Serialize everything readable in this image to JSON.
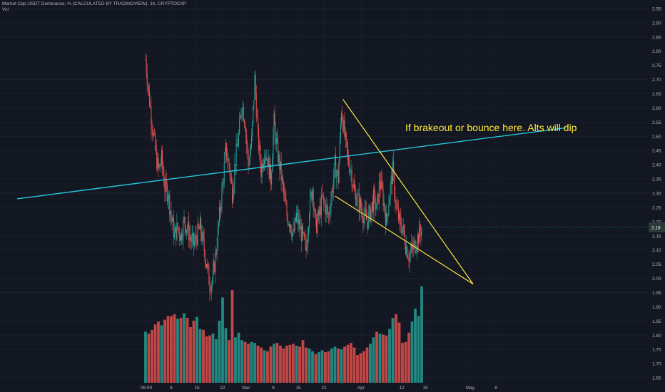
{
  "header": {
    "title": "Market Cap USDT Dominance, % (CALCULATED BY TRADINGVIEW), 1h, CRYPTOCAP",
    "volume_label": "Vol"
  },
  "annotation": "If brakeout or bounce here. Alts will dip",
  "last_price": "2.18",
  "colors": {
    "background": "#131722",
    "up": "#26a69a",
    "down": "#ef5350",
    "trendline": "#26c6da",
    "wedge": "#ffeb3b",
    "annotation": "#ffeb3b",
    "axis_text": "#b2b5be",
    "price_tag": "#2a3a3a"
  },
  "chart_data": {
    "type": "candlestick",
    "x_ticks": [
      "06:00",
      "8",
      "15",
      "22",
      "Mar",
      "8",
      "15",
      "22",
      "Apr",
      "12",
      "19",
      "May",
      "8"
    ],
    "y_ticks": [
      "1.65",
      "1.70",
      "1.75",
      "1.80",
      "1.85",
      "1.90",
      "1.95",
      "2.00",
      "2.05",
      "2.10",
      "2.15",
      "2.20",
      "2.25",
      "2.30",
      "2.35",
      "2.40",
      "2.45",
      "2.50",
      "2.55",
      "2.60",
      "2.65",
      "2.70",
      "2.75",
      "2.80",
      "2.85",
      "2.90",
      "2.95"
    ],
    "y_range": [
      1.63,
      2.98
    ],
    "price_path": [
      [
        0,
        2.77
      ],
      [
        1,
        2.65
      ],
      [
        2,
        2.55
      ],
      [
        3,
        2.45
      ],
      [
        4,
        2.38
      ],
      [
        5,
        2.42
      ],
      [
        6,
        2.32
      ],
      [
        7,
        2.3
      ],
      [
        8,
        2.22
      ],
      [
        9,
        2.15
      ],
      [
        10,
        2.18
      ],
      [
        11,
        2.15
      ],
      [
        12,
        2.2
      ],
      [
        13,
        2.18
      ],
      [
        14,
        2.14
      ],
      [
        15,
        2.12
      ],
      [
        16,
        2.15
      ],
      [
        17,
        2.18
      ],
      [
        18,
        2.12
      ],
      [
        19,
        2.05
      ],
      [
        20,
        1.98
      ],
      [
        21,
        2.0
      ],
      [
        22,
        2.1
      ],
      [
        23,
        2.22
      ],
      [
        24,
        2.33
      ],
      [
        25,
        2.45
      ],
      [
        26,
        2.4
      ],
      [
        27,
        2.3
      ],
      [
        28,
        2.42
      ],
      [
        29,
        2.5
      ],
      [
        30,
        2.62
      ],
      [
        31,
        2.55
      ],
      [
        32,
        2.4
      ],
      [
        33,
        2.48
      ],
      [
        34,
        2.7
      ],
      [
        35,
        2.5
      ],
      [
        36,
        2.38
      ],
      [
        37,
        2.45
      ],
      [
        38,
        2.42
      ],
      [
        39,
        2.35
      ],
      [
        40,
        2.55
      ],
      [
        41,
        2.45
      ],
      [
        42,
        2.38
      ],
      [
        43,
        2.3
      ],
      [
        44,
        2.22
      ],
      [
        45,
        2.2
      ],
      [
        46,
        2.15
      ],
      [
        47,
        2.22
      ],
      [
        48,
        2.18
      ],
      [
        49,
        2.14
      ],
      [
        50,
        2.1
      ],
      [
        51,
        2.25
      ],
      [
        52,
        2.32
      ],
      [
        53,
        2.18
      ],
      [
        54,
        2.22
      ],
      [
        55,
        2.28
      ],
      [
        56,
        2.25
      ],
      [
        57,
        2.22
      ],
      [
        58,
        2.3
      ],
      [
        59,
        2.4
      ],
      [
        60,
        2.35
      ],
      [
        61,
        2.6
      ],
      [
        62,
        2.5
      ],
      [
        63,
        2.42
      ],
      [
        64,
        2.38
      ],
      [
        65,
        2.3
      ],
      [
        66,
        2.28
      ],
      [
        67,
        2.25
      ],
      [
        68,
        2.22
      ],
      [
        69,
        2.2
      ],
      [
        70,
        2.23
      ],
      [
        71,
        2.28
      ],
      [
        72,
        2.24
      ],
      [
        73,
        2.35
      ],
      [
        74,
        2.28
      ],
      [
        75,
        2.2
      ],
      [
        76,
        2.3
      ],
      [
        77,
        2.38
      ],
      [
        78,
        2.25
      ],
      [
        79,
        2.2
      ],
      [
        80,
        2.18
      ],
      [
        81,
        2.12
      ],
      [
        82,
        2.08
      ],
      [
        83,
        2.1
      ],
      [
        84,
        2.12
      ],
      [
        85,
        2.15
      ],
      [
        86,
        2.18
      ]
    ],
    "volume": [
      0.55,
      0.53,
      0.57,
      0.63,
      0.66,
      0.62,
      0.68,
      0.72,
      0.72,
      0.74,
      0.69,
      0.7,
      0.75,
      0.7,
      0.6,
      0.67,
      0.71,
      0.58,
      0.57,
      0.5,
      0.51,
      0.53,
      0.47,
      0.67,
      0.92,
      0.59,
      0.46,
      1.0,
      0.49,
      0.54,
      0.46,
      0.44,
      0.42,
      0.44,
      0.43,
      0.4,
      0.38,
      0.35,
      0.34,
      0.39,
      0.42,
      0.43,
      0.4,
      0.37,
      0.4,
      0.41,
      0.42,
      0.4,
      0.39,
      0.46,
      0.38,
      0.37,
      0.34,
      0.31,
      0.33,
      0.35,
      0.33,
      0.34,
      0.37,
      0.39,
      0.37,
      0.36,
      0.39,
      0.41,
      0.43,
      0.38,
      0.3,
      0.32,
      0.34,
      0.38,
      0.42,
      0.49,
      0.55,
      0.53,
      0.52,
      0.51,
      0.58,
      0.7,
      0.74,
      0.65,
      0.43,
      0.44,
      0.54,
      0.66,
      0.8,
      0.72,
      1.04
    ],
    "overlays": [
      {
        "type": "trendline",
        "name": "",
        "points": [
          [
            -40,
            2.28
          ],
          [
            131,
            2.53
          ]
        ]
      },
      {
        "type": "wedge-upper",
        "name": "",
        "points": [
          [
            61.5,
            2.63
          ],
          [
            102,
            1.98
          ]
        ]
      },
      {
        "type": "wedge-lower",
        "name": "",
        "points": [
          [
            59,
            2.29
          ],
          [
            102,
            1.98
          ]
        ]
      }
    ]
  }
}
